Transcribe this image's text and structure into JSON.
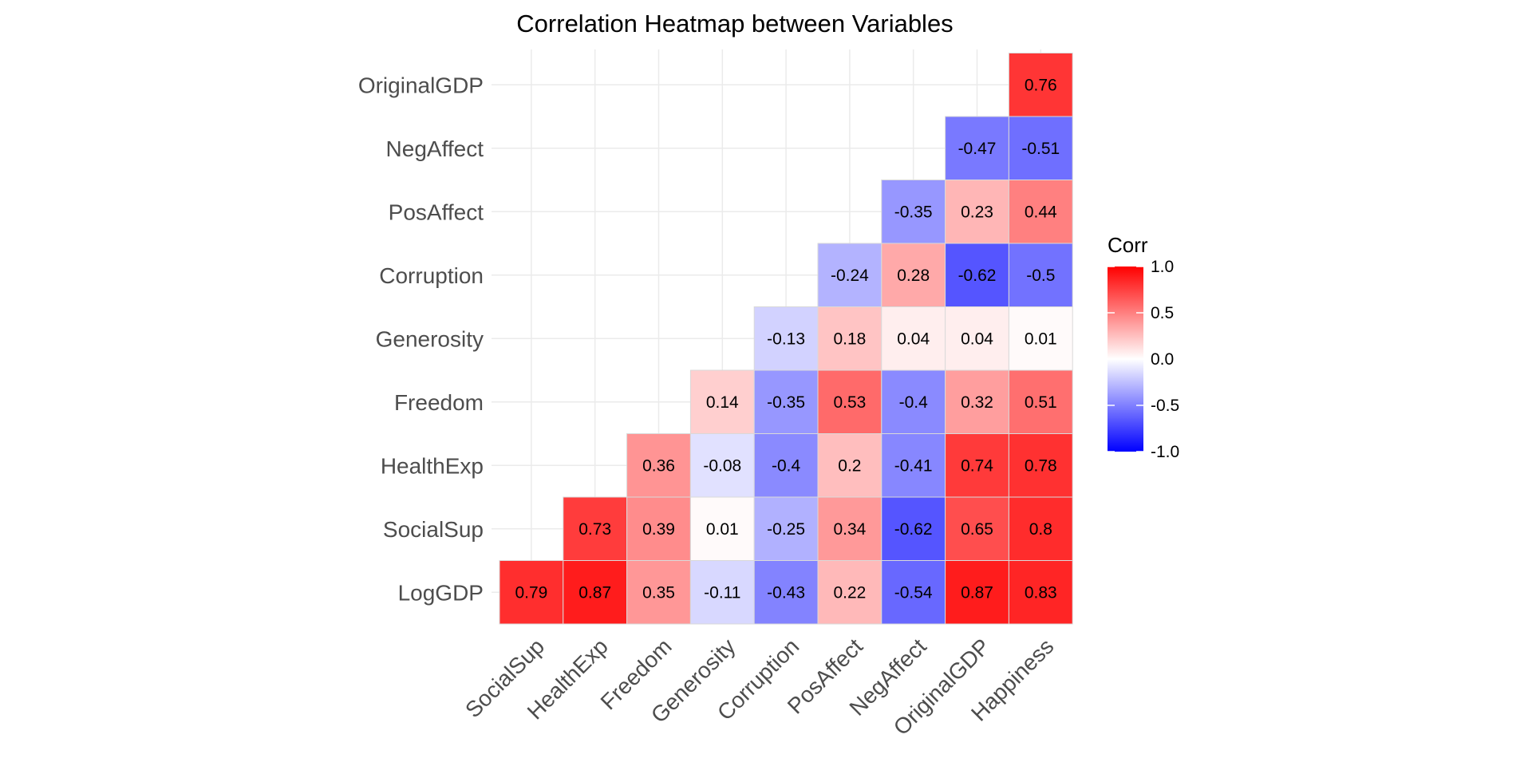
{
  "chart_data": {
    "type": "heatmap",
    "title": "Correlation Heatmap between Variables",
    "x_categories": [
      "SocialSup",
      "HealthExp",
      "Freedom",
      "Generosity",
      "Corruption",
      "PosAffect",
      "NegAffect",
      "OriginalGDP",
      "Happiness"
    ],
    "y_categories": [
      "LogGDP",
      "SocialSup",
      "HealthExp",
      "Freedom",
      "Generosity",
      "Corruption",
      "PosAffect",
      "NegAffect",
      "OriginalGDP"
    ],
    "cells": [
      {
        "x": "SocialSup",
        "y": "LogGDP",
        "value": 0.79
      },
      {
        "x": "HealthExp",
        "y": "LogGDP",
        "value": 0.87
      },
      {
        "x": "Freedom",
        "y": "LogGDP",
        "value": 0.35
      },
      {
        "x": "Generosity",
        "y": "LogGDP",
        "value": -0.11
      },
      {
        "x": "Corruption",
        "y": "LogGDP",
        "value": -0.43
      },
      {
        "x": "PosAffect",
        "y": "LogGDP",
        "value": 0.22
      },
      {
        "x": "NegAffect",
        "y": "LogGDP",
        "value": -0.54
      },
      {
        "x": "OriginalGDP",
        "y": "LogGDP",
        "value": 0.87
      },
      {
        "x": "Happiness",
        "y": "LogGDP",
        "value": 0.83
      },
      {
        "x": "HealthExp",
        "y": "SocialSup",
        "value": 0.73
      },
      {
        "x": "Freedom",
        "y": "SocialSup",
        "value": 0.39
      },
      {
        "x": "Generosity",
        "y": "SocialSup",
        "value": 0.01
      },
      {
        "x": "Corruption",
        "y": "SocialSup",
        "value": -0.25
      },
      {
        "x": "PosAffect",
        "y": "SocialSup",
        "value": 0.34
      },
      {
        "x": "NegAffect",
        "y": "SocialSup",
        "value": -0.62
      },
      {
        "x": "OriginalGDP",
        "y": "SocialSup",
        "value": 0.65
      },
      {
        "x": "Happiness",
        "y": "SocialSup",
        "value": 0.8
      },
      {
        "x": "Freedom",
        "y": "HealthExp",
        "value": 0.36
      },
      {
        "x": "Generosity",
        "y": "HealthExp",
        "value": -0.08
      },
      {
        "x": "Corruption",
        "y": "HealthExp",
        "value": -0.4
      },
      {
        "x": "PosAffect",
        "y": "HealthExp",
        "value": 0.2
      },
      {
        "x": "NegAffect",
        "y": "HealthExp",
        "value": -0.41
      },
      {
        "x": "OriginalGDP",
        "y": "HealthExp",
        "value": 0.74
      },
      {
        "x": "Happiness",
        "y": "HealthExp",
        "value": 0.78
      },
      {
        "x": "Generosity",
        "y": "Freedom",
        "value": 0.14
      },
      {
        "x": "Corruption",
        "y": "Freedom",
        "value": -0.35
      },
      {
        "x": "PosAffect",
        "y": "Freedom",
        "value": 0.53
      },
      {
        "x": "NegAffect",
        "y": "Freedom",
        "value": -0.4
      },
      {
        "x": "OriginalGDP",
        "y": "Freedom",
        "value": 0.32
      },
      {
        "x": "Happiness",
        "y": "Freedom",
        "value": 0.51
      },
      {
        "x": "Corruption",
        "y": "Generosity",
        "value": -0.13
      },
      {
        "x": "PosAffect",
        "y": "Generosity",
        "value": 0.18
      },
      {
        "x": "NegAffect",
        "y": "Generosity",
        "value": 0.04
      },
      {
        "x": "OriginalGDP",
        "y": "Generosity",
        "value": 0.04
      },
      {
        "x": "Happiness",
        "y": "Generosity",
        "value": 0.01
      },
      {
        "x": "PosAffect",
        "y": "Corruption",
        "value": -0.24
      },
      {
        "x": "NegAffect",
        "y": "Corruption",
        "value": 0.28
      },
      {
        "x": "OriginalGDP",
        "y": "Corruption",
        "value": -0.62
      },
      {
        "x": "Happiness",
        "y": "Corruption",
        "value": -0.5
      },
      {
        "x": "NegAffect",
        "y": "PosAffect",
        "value": -0.35
      },
      {
        "x": "OriginalGDP",
        "y": "PosAffect",
        "value": 0.23
      },
      {
        "x": "Happiness",
        "y": "PosAffect",
        "value": 0.44
      },
      {
        "x": "OriginalGDP",
        "y": "NegAffect",
        "value": -0.47
      },
      {
        "x": "Happiness",
        "y": "NegAffect",
        "value": -0.51
      },
      {
        "x": "Happiness",
        "y": "OriginalGDP",
        "value": 0.76
      }
    ],
    "legend": {
      "title": "Corr",
      "position": "right",
      "range": [
        -1.0,
        1.0
      ],
      "ticks": [
        "1.0",
        "0.5",
        "0.0",
        "-0.5",
        "-1.0"
      ],
      "tick_values": [
        1.0,
        0.5,
        0.0,
        -0.5,
        -1.0
      ],
      "low_color": "#0000ff",
      "mid_color": "#ffffff",
      "high_color": "#ff0000"
    },
    "grid": true
  }
}
